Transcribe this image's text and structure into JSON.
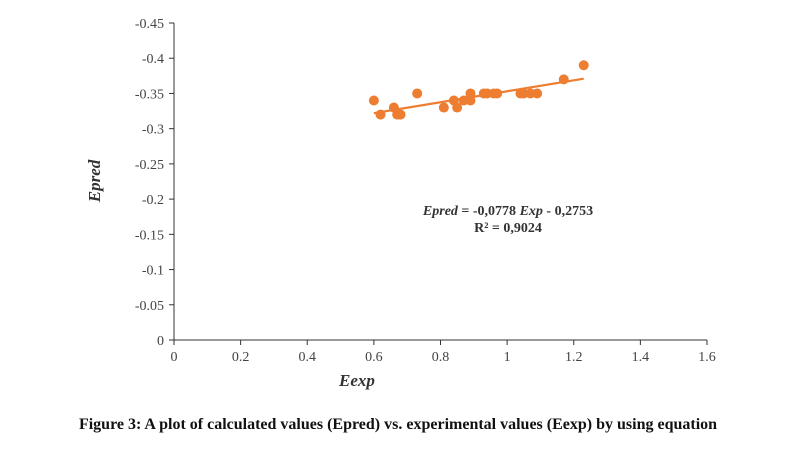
{
  "caption": "Figure 3: A plot of calculated values (Epred) vs. experimental values (Eexp) by using equation",
  "colors": {
    "marker": "#ED7D31",
    "trendline": "#ED7D31",
    "axis": "#333333"
  },
  "equation": {
    "line1_italic_a": "Epred",
    "line1_mid": " = -0,0778 ",
    "line1_italic_b": "Exp",
    "line1_end": " - 0,2753",
    "line2": "R² = 0,9024"
  },
  "chart_data": {
    "type": "scatter",
    "title": "",
    "xlabel": "Eexp",
    "ylabel": "Epred",
    "xlim": [
      0,
      1.6
    ],
    "ylim": [
      0,
      -0.45
    ],
    "x_ticks": [
      0,
      0.2,
      0.4,
      0.6,
      0.8,
      1.0,
      1.2,
      1.4,
      1.6
    ],
    "x_tick_labels": [
      "0",
      "0.2",
      "0.4",
      "0.6",
      "0.8",
      "1",
      "1.2",
      "1.4",
      "1.6"
    ],
    "y_ticks": [
      0,
      -0.05,
      -0.1,
      -0.15,
      -0.2,
      -0.25,
      -0.3,
      -0.35,
      -0.4,
      -0.45
    ],
    "y_tick_labels": [
      "0",
      "-0.05",
      "-0.1",
      "-0.15",
      "-0.2",
      "-0.25",
      "-0.3",
      "-0.35",
      "-0.4",
      "-0.45"
    ],
    "grid": false,
    "points": [
      {
        "x": 0.6,
        "y": -0.34
      },
      {
        "x": 0.62,
        "y": -0.32
      },
      {
        "x": 0.66,
        "y": -0.33
      },
      {
        "x": 0.67,
        "y": -0.32
      },
      {
        "x": 0.68,
        "y": -0.32
      },
      {
        "x": 0.73,
        "y": -0.35
      },
      {
        "x": 0.81,
        "y": -0.33
      },
      {
        "x": 0.84,
        "y": -0.34
      },
      {
        "x": 0.85,
        "y": -0.33
      },
      {
        "x": 0.87,
        "y": -0.34
      },
      {
        "x": 0.89,
        "y": -0.35
      },
      {
        "x": 0.89,
        "y": -0.34
      },
      {
        "x": 0.93,
        "y": -0.35
      },
      {
        "x": 0.94,
        "y": -0.35
      },
      {
        "x": 0.96,
        "y": -0.35
      },
      {
        "x": 0.97,
        "y": -0.35
      },
      {
        "x": 1.04,
        "y": -0.35
      },
      {
        "x": 1.05,
        "y": -0.35
      },
      {
        "x": 1.07,
        "y": -0.35
      },
      {
        "x": 1.09,
        "y": -0.35
      },
      {
        "x": 1.17,
        "y": -0.37
      },
      {
        "x": 1.23,
        "y": -0.39
      }
    ],
    "trendline": {
      "slope": -0.0778,
      "intercept": -0.2753,
      "x_range": [
        0.6,
        1.23
      ]
    }
  }
}
